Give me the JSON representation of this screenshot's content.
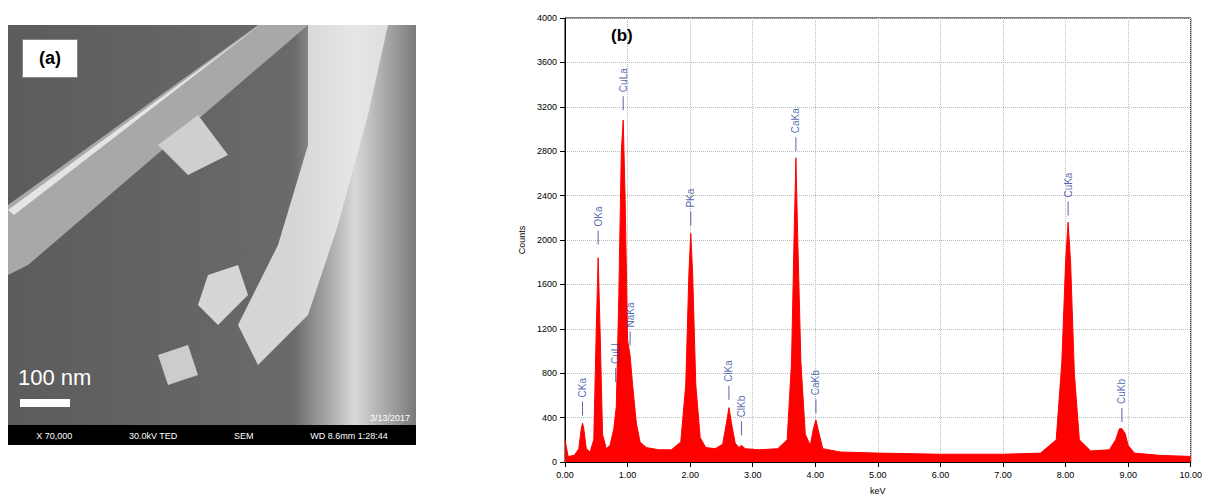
{
  "chart_data": {
    "type": "line",
    "panel_label": "(b)",
    "x_label": "keV",
    "y_label": "Counts",
    "color": "#ff0000",
    "x": [
      0.0,
      0.05,
      0.15,
      0.22,
      0.26,
      0.28,
      0.3,
      0.34,
      0.4,
      0.46,
      0.5,
      0.53,
      0.56,
      0.6,
      0.66,
      0.72,
      0.78,
      0.82,
      0.86,
      0.9,
      0.93,
      0.96,
      1.0,
      1.04,
      1.08,
      1.14,
      1.2,
      1.3,
      1.5,
      1.7,
      1.85,
      1.93,
      1.98,
      2.01,
      2.04,
      2.09,
      2.16,
      2.25,
      2.4,
      2.52,
      2.58,
      2.62,
      2.66,
      2.72,
      2.78,
      2.82,
      2.88,
      3.1,
      3.4,
      3.55,
      3.62,
      3.66,
      3.69,
      3.72,
      3.77,
      3.84,
      3.92,
      3.97,
      4.01,
      4.05,
      4.12,
      4.4,
      5.0,
      6.0,
      7.0,
      7.6,
      7.85,
      7.94,
      8.0,
      8.04,
      8.08,
      8.14,
      8.22,
      8.4,
      8.7,
      8.8,
      8.86,
      8.9,
      8.95,
      9.0,
      9.1,
      9.5,
      10.0
    ],
    "values": [
      200,
      50,
      60,
      120,
      300,
      350,
      300,
      120,
      90,
      200,
      1200,
      1840,
      1200,
      250,
      120,
      150,
      300,
      500,
      1500,
      2800,
      3080,
      2400,
      1100,
      960,
      700,
      350,
      180,
      130,
      110,
      110,
      180,
      700,
      1700,
      2060,
      1700,
      700,
      220,
      130,
      120,
      160,
      350,
      490,
      350,
      170,
      130,
      150,
      120,
      110,
      120,
      200,
      900,
      2000,
      2740,
      2000,
      900,
      250,
      150,
      300,
      380,
      280,
      120,
      90,
      80,
      70,
      70,
      80,
      200,
      900,
      1800,
      2160,
      1800,
      800,
      200,
      100,
      110,
      200,
      300,
      300,
      260,
      150,
      80,
      60,
      50
    ],
    "xlim": [
      0,
      10
    ],
    "xticks": [
      {
        "value": 0,
        "label": "0.00"
      },
      {
        "value": 1,
        "label": "1.00"
      },
      {
        "value": 2,
        "label": "2.00"
      },
      {
        "value": 3,
        "label": "3.00"
      },
      {
        "value": 4,
        "label": "4.00"
      },
      {
        "value": 5,
        "label": "5.00"
      },
      {
        "value": 6,
        "label": "6.00"
      },
      {
        "value": 7,
        "label": "7.00"
      },
      {
        "value": 8,
        "label": "8.00"
      },
      {
        "value": 9,
        "label": "9.00"
      },
      {
        "value": 10,
        "label": "10.00"
      }
    ],
    "ylim": [
      0,
      4000
    ],
    "yticks": [
      0,
      400,
      800,
      1200,
      1600,
      2000,
      2400,
      2800,
      3200,
      3600,
      4000
    ],
    "grid": true,
    "annotations": [
      {
        "text": "CKa",
        "x": 0.28,
        "y": 420
      },
      {
        "text": "OKa",
        "x": 0.53,
        "y": 1960
      },
      {
        "text": "CuLl",
        "x": 0.81,
        "y": 720
      },
      {
        "text": "NaKa",
        "x": 1.04,
        "y": 1050
      },
      {
        "text": "CuLa",
        "x": 0.93,
        "y": 3170
      },
      {
        "text": "PKa",
        "x": 2.01,
        "y": 2130
      },
      {
        "text": "ClKa",
        "x": 2.62,
        "y": 560
      },
      {
        "text": "ClKb",
        "x": 2.82,
        "y": 240
      },
      {
        "text": "CaKa",
        "x": 3.69,
        "y": 2800
      },
      {
        "text": "CaKb",
        "x": 4.01,
        "y": 440
      },
      {
        "text": "CuKa",
        "x": 8.04,
        "y": 2220
      },
      {
        "text": "CuKb",
        "x": 8.9,
        "y": 360
      }
    ]
  },
  "sem_image": {
    "panel_label": "(a)",
    "scale_bar": "100 nm",
    "date": "3/13/2017",
    "info": [
      "X 70,000",
      "30.0kV TED",
      "SEM",
      "WD 8.6mm 1:28:44"
    ]
  }
}
